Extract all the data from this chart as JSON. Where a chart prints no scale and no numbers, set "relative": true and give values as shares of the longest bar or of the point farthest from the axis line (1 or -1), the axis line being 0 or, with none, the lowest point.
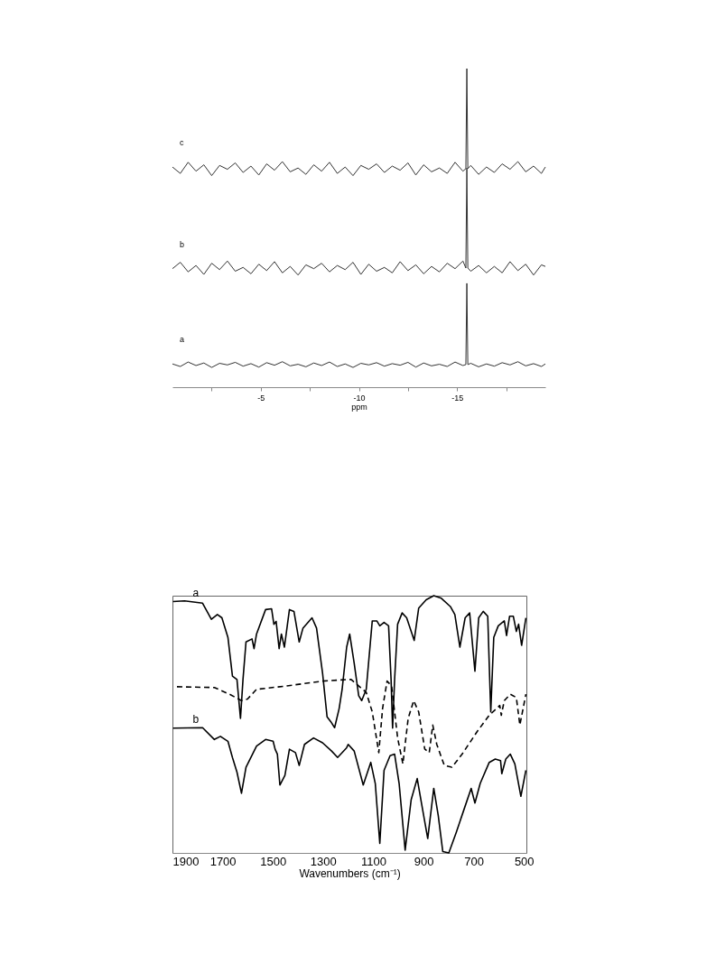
{
  "chart_data": [
    {
      "type": "line",
      "relative": true,
      "xlabel": "ppm",
      "xlim": [
        -0.5,
        -19.5
      ],
      "xticks": [
        {
          "value": -2.5,
          "label": null
        },
        -5,
        {
          "value": -7.5,
          "label": null
        },
        -10,
        {
          "value": -12.5,
          "label": null
        },
        -15,
        {
          "value": -17.5,
          "label": null
        }
      ],
      "x": [
        -0.5,
        -0.9,
        -1.3,
        -1.7,
        -2.1,
        -2.5,
        -2.9,
        -3.3,
        -3.7,
        -4.1,
        -4.5,
        -4.9,
        -5.3,
        -5.7,
        -6.1,
        -6.5,
        -6.9,
        -7.3,
        -7.7,
        -8.1,
        -8.5,
        -8.9,
        -9.3,
        -9.7,
        -10.1,
        -10.5,
        -10.9,
        -11.3,
        -11.7,
        -12.1,
        -12.5,
        -12.9,
        -13.3,
        -13.7,
        -14.1,
        -14.5,
        -14.9,
        -15.3,
        -15.45,
        -15.5,
        -15.55,
        -15.7,
        -16.1,
        -16.5,
        -16.9,
        -17.3,
        -17.7,
        -18.1,
        -18.5,
        -18.9,
        -19.3,
        -19.5
      ],
      "tick_labels": "x",
      "grid": false,
      "marker": "none",
      "series": [
        {
          "name": "c",
          "color": "#333333",
          "values": [
            0.691,
            0.671,
            0.706,
            0.678,
            0.698,
            0.664,
            0.696,
            0.684,
            0.704,
            0.674,
            0.694,
            0.666,
            0.701,
            0.681,
            0.708,
            0.676,
            0.688,
            0.668,
            0.698,
            0.678,
            0.706,
            0.671,
            0.691,
            0.664,
            0.696,
            0.684,
            0.701,
            0.674,
            0.694,
            0.681,
            0.704,
            0.666,
            0.698,
            0.676,
            0.688,
            0.671,
            0.706,
            0.678,
            0.686,
            1.0,
            0.686,
            0.696,
            0.668,
            0.691,
            0.674,
            0.701,
            0.684,
            0.708,
            0.676,
            0.694,
            0.671,
            0.691
          ]
        },
        {
          "name": "b",
          "color": "#333333",
          "values": [
            0.372,
            0.392,
            0.362,
            0.382,
            0.354,
            0.389,
            0.369,
            0.396,
            0.364,
            0.376,
            0.356,
            0.386,
            0.366,
            0.394,
            0.359,
            0.379,
            0.352,
            0.384,
            0.372,
            0.389,
            0.362,
            0.382,
            0.369,
            0.392,
            0.354,
            0.386,
            0.364,
            0.376,
            0.359,
            0.394,
            0.366,
            0.384,
            0.356,
            0.379,
            0.362,
            0.389,
            0.372,
            0.396,
            0.374,
            0.688,
            0.374,
            0.364,
            0.382,
            0.359,
            0.379,
            0.359,
            0.394,
            0.366,
            0.386,
            0.352,
            0.384,
            0.379
          ]
        },
        {
          "name": "a",
          "color": "#333333",
          "values": [
            0.073,
            0.065,
            0.079,
            0.068,
            0.076,
            0.062,
            0.075,
            0.07,
            0.078,
            0.066,
            0.074,
            0.063,
            0.077,
            0.069,
            0.08,
            0.067,
            0.072,
            0.064,
            0.076,
            0.068,
            0.079,
            0.065,
            0.073,
            0.062,
            0.075,
            0.07,
            0.077,
            0.066,
            0.074,
            0.069,
            0.078,
            0.063,
            0.076,
            0.067,
            0.072,
            0.065,
            0.079,
            0.068,
            0.071,
            0.326,
            0.071,
            0.075,
            0.064,
            0.073,
            0.066,
            0.077,
            0.07,
            0.08,
            0.067,
            0.074,
            0.065,
            0.073
          ]
        }
      ]
    },
    {
      "type": "line",
      "relative": true,
      "xlabel": "Wavenumbers (cm⁻¹)",
      "xlim": [
        1900,
        490
      ],
      "xticks": [
        1900,
        1700,
        1500,
        1300,
        1100,
        900,
        700,
        500
      ],
      "tick_labels": "x",
      "grid": false,
      "marker": "none",
      "series": [
        {
          "name": "a",
          "color": "#000000",
          "line_style": "solid",
          "x": [
            1898,
            1852,
            1780,
            1745,
            1721,
            1703,
            1679,
            1661,
            1643,
            1629,
            1619,
            1607,
            1583,
            1575,
            1565,
            1529,
            1505,
            1496,
            1487,
            1475,
            1466,
            1454,
            1434,
            1416,
            1395,
            1380,
            1344,
            1326,
            1302,
            1284,
            1269,
            1254,
            1236,
            1224,
            1206,
            1194,
            1176,
            1158,
            1146,
            1128,
            1104,
            1086,
            1074,
            1057,
            1039,
            1029,
            1023,
            1015,
            1003,
            985,
            967,
            937,
            919,
            889,
            859,
            829,
            793,
            775,
            755,
            734,
            716,
            695,
            680,
            662,
            644,
            632,
            620,
            602,
            578,
            569,
            557,
            542,
            530,
            521,
            509,
            492
          ],
          "values": [
            0.977,
            0.98,
            0.971,
            0.908,
            0.927,
            0.914,
            0.838,
            0.687,
            0.674,
            0.523,
            0.674,
            0.82,
            0.832,
            0.794,
            0.851,
            0.946,
            0.949,
            0.889,
            0.9,
            0.794,
            0.851,
            0.8,
            0.946,
            0.939,
            0.82,
            0.874,
            0.914,
            0.874,
            0.699,
            0.529,
            0.51,
            0.487,
            0.561,
            0.636,
            0.8,
            0.851,
            0.737,
            0.611,
            0.592,
            0.636,
            0.902,
            0.902,
            0.883,
            0.896,
            0.883,
            0.674,
            0.485,
            0.674,
            0.889,
            0.933,
            0.914,
            0.826,
            0.952,
            0.984,
            1.0,
            0.99,
            0.958,
            0.927,
            0.8,
            0.914,
            0.933,
            0.706,
            0.914,
            0.939,
            0.92,
            0.548,
            0.838,
            0.883,
            0.902,
            0.845,
            0.92,
            0.92,
            0.861,
            0.889,
            0.807,
            0.914
          ]
        },
        {
          "color": "#000000",
          "line_style": "dashed",
          "x": [
            1882,
            1733,
            1673,
            1625,
            1601,
            1565,
            1446,
            1302,
            1206,
            1188,
            1128,
            1104,
            1078,
            1063,
            1045,
            1027,
            1003,
            982,
            961,
            939,
            919,
            895,
            877,
            863,
            847,
            817,
            787,
            746,
            686,
            638,
            596,
            590,
            578,
            554,
            530,
            516,
            492
          ],
          "values": [
            0.646,
            0.643,
            0.617,
            0.592,
            0.598,
            0.636,
            0.649,
            0.668,
            0.674,
            0.674,
            0.624,
            0.548,
            0.39,
            0.561,
            0.668,
            0.649,
            0.447,
            0.346,
            0.523,
            0.592,
            0.548,
            0.404,
            0.39,
            0.497,
            0.422,
            0.34,
            0.333,
            0.384,
            0.472,
            0.535,
            0.573,
            0.535,
            0.592,
            0.617,
            0.604,
            0.497,
            0.617
          ]
        },
        {
          "name": "b",
          "color": "#000000",
          "line_style": "solid",
          "x": [
            1898,
            1780,
            1733,
            1709,
            1679,
            1661,
            1643,
            1625,
            1607,
            1565,
            1529,
            1499,
            1491,
            1482,
            1472,
            1452,
            1434,
            1410,
            1395,
            1374,
            1338,
            1302,
            1266,
            1242,
            1206,
            1200,
            1176,
            1140,
            1110,
            1092,
            1074,
            1057,
            1033,
            1015,
            997,
            973,
            949,
            925,
            907,
            883,
            859,
            841,
            823,
            799,
            769,
            734,
            710,
            695,
            674,
            638,
            614,
            593,
            588,
            572,
            554,
            536,
            512,
            492
          ],
          "values": [
            0.485,
            0.487,
            0.441,
            0.453,
            0.434,
            0.371,
            0.314,
            0.232,
            0.333,
            0.415,
            0.441,
            0.434,
            0.403,
            0.384,
            0.264,
            0.301,
            0.403,
            0.39,
            0.34,
            0.422,
            0.447,
            0.428,
            0.396,
            0.371,
            0.409,
            0.422,
            0.396,
            0.264,
            0.352,
            0.27,
            0.037,
            0.321,
            0.378,
            0.384,
            0.27,
            0.011,
            0.207,
            0.289,
            0.188,
            0.056,
            0.251,
            0.144,
            0.005,
            0.0,
            0.081,
            0.182,
            0.251,
            0.194,
            0.27,
            0.352,
            0.365,
            0.359,
            0.308,
            0.365,
            0.384,
            0.346,
            0.22,
            0.321
          ]
        }
      ]
    }
  ]
}
